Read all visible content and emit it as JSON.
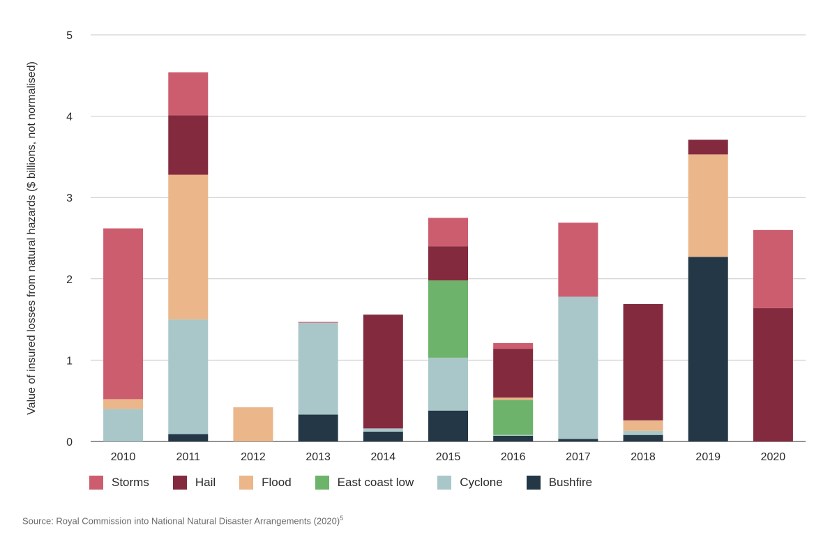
{
  "source": {
    "text": "Source: Royal Commission into National Natural Disaster Arrangements (2020)",
    "note": "5"
  },
  "chart_data": {
    "type": "bar",
    "stacked": true,
    "title": "",
    "xlabel": "",
    "ylabel": "Value of insured losses from natural hazards ($ billions, not normalised)",
    "ylim": [
      0,
      5
    ],
    "yticks": [
      0,
      1,
      2,
      3,
      4,
      5
    ],
    "grid": true,
    "legend_position": "bottom",
    "categories": [
      "2010",
      "2011",
      "2012",
      "2013",
      "2014",
      "2015",
      "2016",
      "2017",
      "2018",
      "2019",
      "2020"
    ],
    "series": [
      {
        "name": "Bushfire",
        "color": "#243746",
        "values": [
          0,
          0.09,
          0,
          0.33,
          0.12,
          0.38,
          0.07,
          0.03,
          0.08,
          2.27,
          0
        ]
      },
      {
        "name": "Cyclone",
        "color": "#a9c7c9",
        "values": [
          0.4,
          1.41,
          0,
          1.13,
          0.04,
          0.65,
          0.01,
          1.75,
          0.05,
          0,
          0
        ]
      },
      {
        "name": "East coast low",
        "color": "#6db36b",
        "values": [
          0,
          0,
          0,
          0,
          0,
          0.95,
          0.43,
          0,
          0,
          0,
          0
        ]
      },
      {
        "name": "Flood",
        "color": "#eab68a",
        "values": [
          0.12,
          1.78,
          0.42,
          0,
          0,
          0,
          0.03,
          0,
          0.13,
          1.26,
          0
        ]
      },
      {
        "name": "Hail",
        "color": "#842a3f",
        "values": [
          0,
          0.73,
          0,
          0,
          1.4,
          0.42,
          0.6,
          0,
          1.43,
          0.18,
          1.64
        ]
      },
      {
        "name": "Storms",
        "color": "#cc5d6e",
        "values": [
          2.1,
          0.53,
          0,
          0.01,
          0,
          0.35,
          0.07,
          0.91,
          0,
          0,
          0.96
        ]
      }
    ],
    "legend_order": [
      "Storms",
      "Hail",
      "Flood",
      "East coast low",
      "Cyclone",
      "Bushfire"
    ]
  }
}
